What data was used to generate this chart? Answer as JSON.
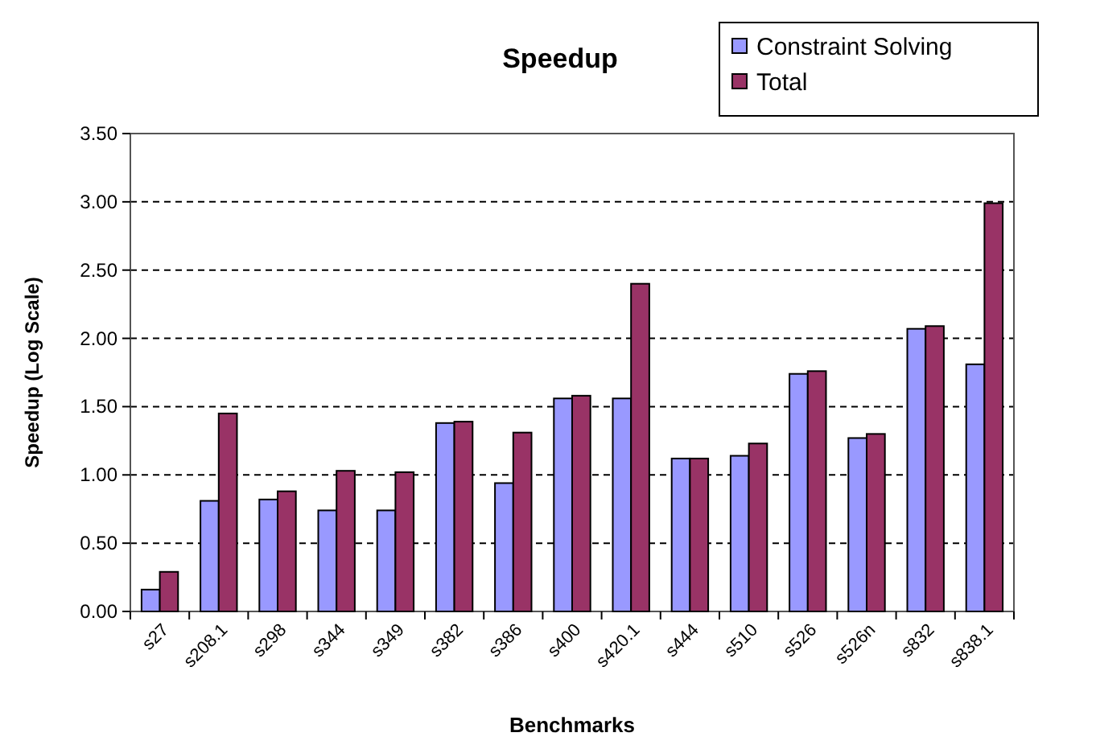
{
  "chart_data": {
    "type": "bar",
    "title": "Speedup",
    "xlabel": "Benchmarks",
    "ylabel": "Speedup (Log Scale)",
    "categories": [
      "s27",
      "s208.1",
      "s298",
      "s344",
      "s349",
      "s382",
      "s386",
      "s400",
      "s420.1",
      "s444",
      "s510",
      "s526",
      "s526n",
      "s832",
      "s838.1"
    ],
    "series": [
      {
        "name": "Constraint Solving",
        "color": "#9999ff",
        "values": [
          0.16,
          0.81,
          0.82,
          0.74,
          0.74,
          1.38,
          0.94,
          1.56,
          1.56,
          1.12,
          1.14,
          1.74,
          1.27,
          2.07,
          1.81
        ]
      },
      {
        "name": "Total",
        "color": "#993366",
        "values": [
          0.29,
          1.45,
          0.88,
          1.03,
          1.02,
          1.39,
          1.31,
          1.58,
          2.4,
          1.12,
          1.23,
          1.76,
          1.3,
          2.09,
          2.99
        ]
      }
    ],
    "ylim": [
      0,
      3.5
    ],
    "yticks": [
      {
        "value": 0,
        "label": "0.00"
      },
      {
        "value": 0.5,
        "label": "0.50"
      },
      {
        "value": 1,
        "label": "1.00"
      },
      {
        "value": 1.5,
        "label": "1.50"
      },
      {
        "value": 2,
        "label": "2.00"
      },
      {
        "value": 2.5,
        "label": "2.50"
      },
      {
        "value": 3,
        "label": "3.00"
      },
      {
        "value": 3.5,
        "label": "3.50"
      }
    ],
    "grid": "y",
    "legend": "top right"
  }
}
